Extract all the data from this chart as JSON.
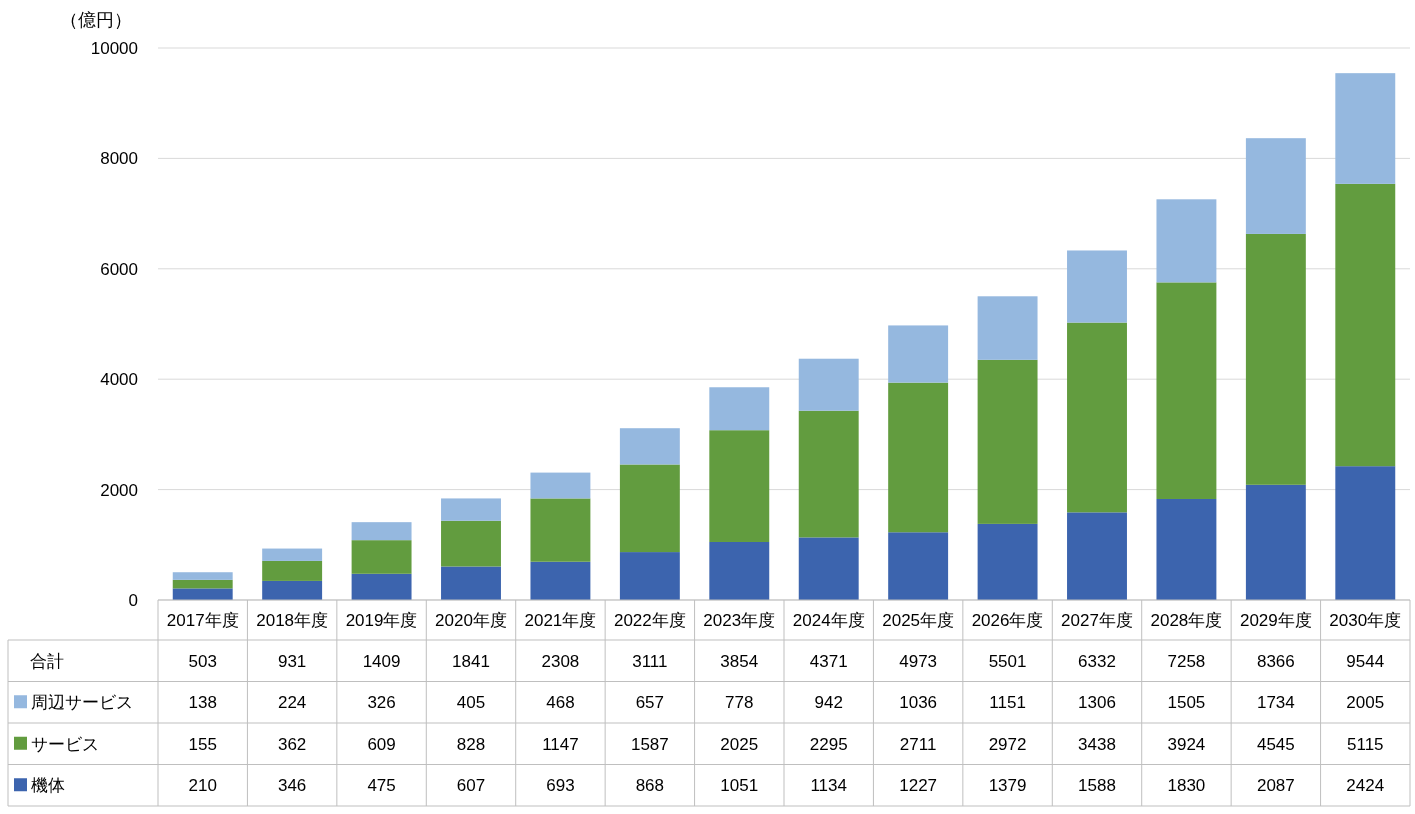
{
  "chart_data": {
    "type": "bar",
    "stacked": true,
    "ylabel": "（億円）",
    "categories": [
      "2017年度",
      "2018年度",
      "2019年度",
      "2020年度",
      "2021年度",
      "2022年度",
      "2023年度",
      "2024年度",
      "2025年度",
      "2026年度",
      "2027年度",
      "2028年度",
      "2029年度",
      "2030年度"
    ],
    "series": [
      {
        "name": "機体",
        "color": "#3c64ae",
        "values": [
          210,
          346,
          475,
          607,
          693,
          868,
          1051,
          1134,
          1227,
          1379,
          1588,
          1830,
          2087,
          2424
        ]
      },
      {
        "name": "サービス",
        "color": "#629c3f",
        "values": [
          155,
          362,
          609,
          828,
          1147,
          1587,
          2025,
          2295,
          2711,
          2972,
          3438,
          3924,
          4545,
          5115
        ]
      },
      {
        "name": "周辺サービス",
        "color": "#95b8df",
        "values": [
          138,
          224,
          326,
          405,
          468,
          657,
          778,
          942,
          1036,
          1151,
          1306,
          1505,
          1734,
          2005
        ]
      }
    ],
    "totals": [
      "503",
      "931",
      "1409",
      "1841",
      "2308",
      "3111",
      "3854",
      "4371",
      "4973",
      "5501",
      "6332",
      "7258",
      "8366",
      "9544"
    ],
    "annotations": [
      "合計"
    ],
    "ylim": [
      0,
      10000
    ],
    "yticks": [
      0,
      2000,
      4000,
      6000,
      8000,
      10000
    ],
    "grid": "y",
    "legend": "bottom",
    "data_labels": true
  }
}
